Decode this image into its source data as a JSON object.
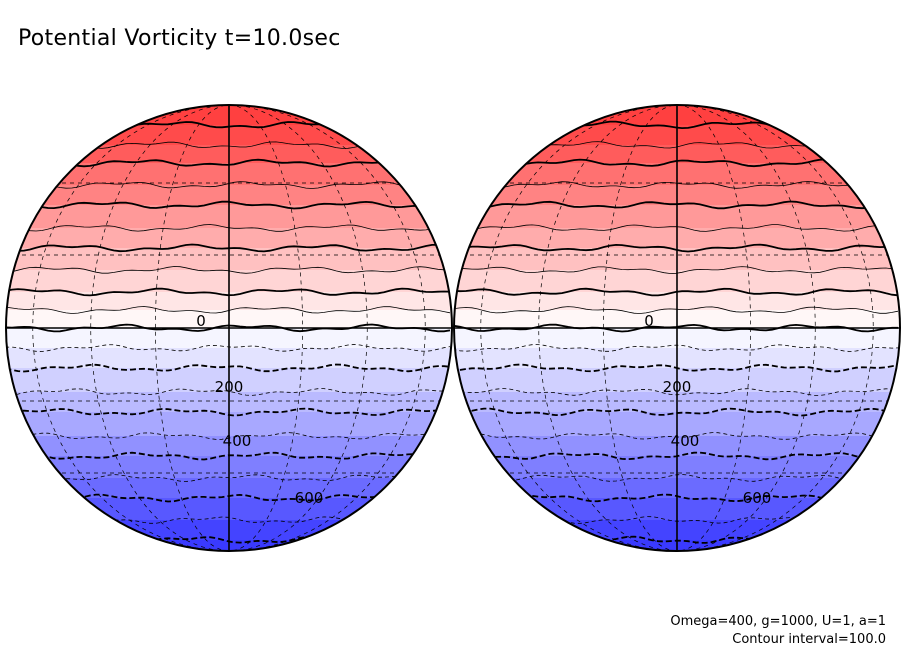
{
  "title": "Potential Vorticity t=10.0sec",
  "parameters": "Omega=400, g=1000, U=1, a=1",
  "contour_note": "Contour interval=100.0",
  "colors": {
    "positive_max": "#ff4040",
    "negative_max": "#3a3aff",
    "zero": "#ffffff"
  },
  "globes": [
    {
      "name": "left-globe",
      "contour_labels": [
        "0",
        "200",
        "400",
        "600"
      ]
    },
    {
      "name": "right-globe",
      "contour_labels": [
        "0",
        "200",
        "400",
        "600"
      ]
    }
  ]
}
